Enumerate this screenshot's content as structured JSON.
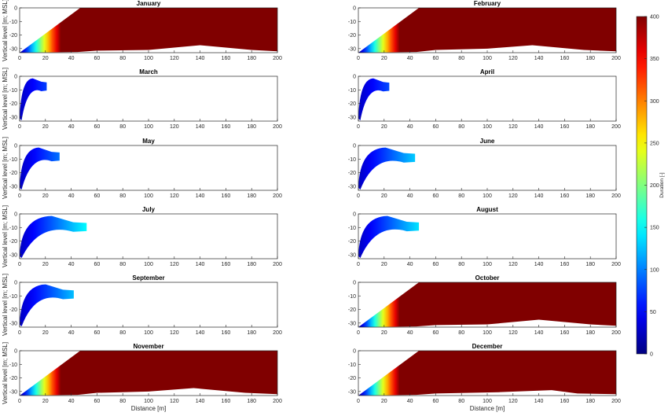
{
  "chart_data": {
    "type": "heatmap",
    "colorbar": {
      "label": "Duration [-]",
      "range": [
        0,
        400
      ],
      "ticks": [
        0,
        50,
        100,
        150,
        200,
        250,
        300,
        350,
        400
      ],
      "colormap": "jet"
    },
    "xlabel": "Distance [m]",
    "ylabel": "Vertical level [m; MSL]",
    "xlim": [
      0,
      200
    ],
    "ylim": [
      -33,
      0
    ],
    "xticks": [
      0,
      20,
      40,
      60,
      80,
      100,
      120,
      140,
      160,
      180,
      200
    ],
    "yticks": [
      0,
      -10,
      -20,
      -30
    ],
    "panels": [
      {
        "title": "January",
        "kind": "full",
        "duration_max": 400
      },
      {
        "title": "February",
        "kind": "full",
        "duration_max": 400
      },
      {
        "title": "March",
        "kind": "plume",
        "reach_x": 21,
        "duration_max": 75
      },
      {
        "title": "April",
        "kind": "plume",
        "reach_x": 24,
        "duration_max": 80
      },
      {
        "title": "May",
        "kind": "plume",
        "reach_x": 31,
        "duration_max": 95
      },
      {
        "title": "June",
        "kind": "plume",
        "reach_x": 44,
        "duration_max": 130
      },
      {
        "title": "July",
        "kind": "plume",
        "reach_x": 52,
        "duration_max": 150
      },
      {
        "title": "August",
        "kind": "plume",
        "reach_x": 47,
        "duration_max": 140
      },
      {
        "title": "September",
        "kind": "plume",
        "reach_x": 42,
        "duration_max": 125
      },
      {
        "title": "October",
        "kind": "full",
        "duration_max": 400
      },
      {
        "title": "November",
        "kind": "full",
        "duration_max": 400
      },
      {
        "title": "December",
        "kind": "full",
        "duration_max": 400
      }
    ]
  }
}
